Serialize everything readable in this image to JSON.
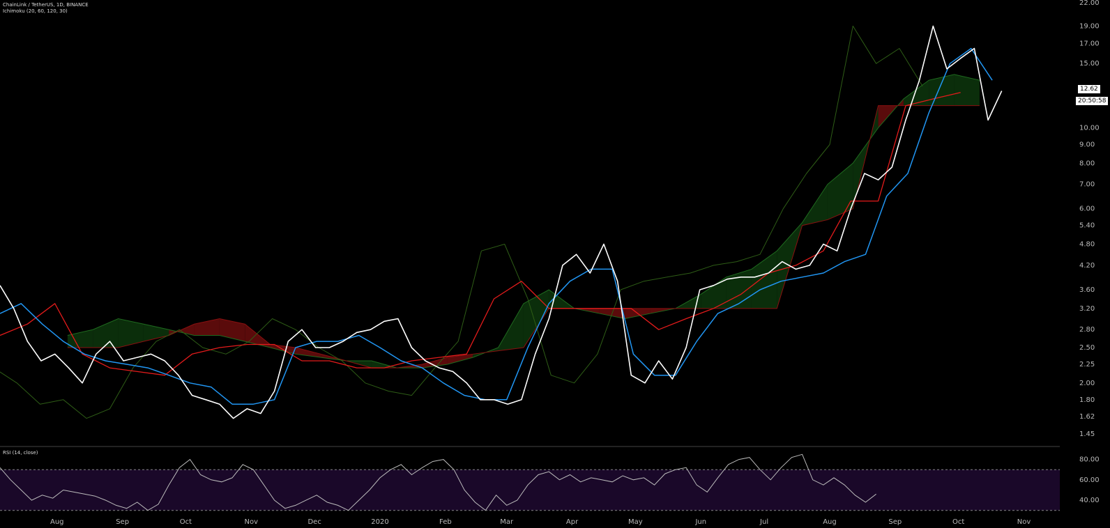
{
  "header": {
    "symbol": "ChainLink / TetherUS, 1D, BINANCE",
    "indicator": "Ichimoku (20, 60, 120, 30)",
    "rsi_label": "RSI (14, close)"
  },
  "price_tag": "12.62",
  "countdown_tag": "20:50:58",
  "colors": {
    "background": "#000000",
    "price": "#ffffff",
    "conversion": "#2196f3",
    "base": "#e31b1b",
    "lagging": "#2e5d16",
    "cloud_bull": "#0b2e0b",
    "cloud_bear": "#5a0b0b",
    "rsi_band": "#1a0829",
    "rsi_line": "#bbbbbb",
    "axis_text": "#bbbbbb"
  },
  "chart_data": [
    {
      "type": "line",
      "title": "",
      "price_scale": "log",
      "ylim": [
        1.4,
        22.0
      ],
      "y_ticks": [
        "22.00",
        "19.00",
        "17.00",
        "15.00",
        "12.62",
        "10.00",
        "9.00",
        "8.00",
        "7.00",
        "6.00",
        "5.40",
        "4.80",
        "4.20",
        "3.60",
        "3.20",
        "2.80",
        "2.50",
        "2.25",
        "2.00",
        "1.80",
        "1.62",
        "1.45"
      ],
      "x_ticks": [
        "Aug",
        "Sep",
        "Oct",
        "Nov",
        "Dec",
        "2020",
        "Feb",
        "Mar",
        "Apr",
        "May",
        "Jun",
        "Jul",
        "Aug",
        "Sep",
        "Oct",
        "Nov"
      ],
      "x_tick_index": [
        0,
        31,
        61,
        92,
        122,
        153,
        184,
        213,
        244,
        274,
        305,
        335,
        366,
        397,
        427,
        458
      ],
      "x_range_index": [
        -27,
        475
      ],
      "series": [
        {
          "key": "close",
          "x_start_index": -27,
          "values": [
            3.7,
            3.2,
            2.6,
            2.3,
            2.4,
            2.2,
            2.0,
            2.4,
            2.6,
            2.3,
            2.35,
            2.4,
            2.3,
            2.1,
            1.85,
            1.8,
            1.75,
            1.6,
            1.7,
            1.65,
            1.9,
            2.6,
            2.8,
            2.5,
            2.5,
            2.6,
            2.75,
            2.8,
            2.95,
            3.0,
            2.5,
            2.3,
            2.2,
            2.15,
            2.0,
            1.8,
            1.8,
            1.75,
            1.8,
            2.4,
            3.0,
            4.2,
            4.5,
            4.0,
            4.8,
            3.8,
            2.1,
            2.0,
            2.3,
            2.05,
            2.5,
            3.6,
            3.7,
            3.85,
            3.9,
            3.9,
            4.0,
            4.3,
            4.1,
            4.2,
            4.8,
            4.6,
            6.0,
            7.5,
            7.2,
            7.8,
            10.5,
            13.5,
            19.0,
            14.5,
            15.5,
            16.5,
            10.5,
            12.62
          ],
          "x_step": 6.5
        },
        {
          "key": "conversion",
          "x_start_index": -27,
          "values": [
            3.1,
            3.3,
            2.9,
            2.6,
            2.4,
            2.3,
            2.25,
            2.2,
            2.1,
            2.0,
            1.95,
            1.75,
            1.75,
            1.8,
            2.5,
            2.6,
            2.6,
            2.7,
            2.5,
            2.3,
            2.2,
            2.0,
            1.85,
            1.8,
            1.8,
            2.5,
            3.3,
            3.8,
            4.1,
            4.1,
            2.4,
            2.1,
            2.1,
            2.6,
            3.1,
            3.3,
            3.6,
            3.8,
            3.9,
            4.0,
            4.3,
            4.5,
            6.5,
            7.5,
            11.0,
            15.0,
            16.5,
            13.5
          ],
          "x_step": 10.0
        },
        {
          "key": "base",
          "x_start_index": -27,
          "values": [
            2.7,
            2.9,
            3.3,
            2.4,
            2.2,
            2.15,
            2.1,
            2.4,
            2.5,
            2.55,
            2.55,
            2.3,
            2.3,
            2.2,
            2.2,
            2.3,
            2.35,
            2.4,
            3.4,
            3.8,
            3.2,
            3.2,
            3.2,
            3.2,
            2.8,
            3.0,
            3.2,
            3.5,
            4.0,
            4.2,
            4.6,
            6.3,
            6.3,
            11.5,
            12.0,
            12.5
          ],
          "x_step": 13.0
        },
        {
          "key": "lagging",
          "x_start_index": -52,
          "values": [
            2.7,
            2.4,
            2.2,
            2.0,
            1.75,
            1.8,
            1.6,
            1.7,
            2.2,
            2.6,
            2.8,
            2.5,
            2.4,
            2.6,
            3.0,
            2.8,
            2.5,
            2.3,
            2.0,
            1.9,
            1.85,
            2.2,
            2.6,
            4.6,
            4.8,
            3.4,
            2.1,
            2.0,
            2.4,
            3.6,
            3.8,
            3.9,
            4.0,
            4.2,
            4.3,
            4.5,
            6.0,
            7.5,
            9.0,
            19.0,
            15.0,
            16.5,
            13.0
          ],
          "x_step": 11.0
        }
      ],
      "cloud": {
        "x_start_index": 5,
        "x_step": 12.0,
        "span_a": [
          2.7,
          2.8,
          3.0,
          2.9,
          2.8,
          2.7,
          2.7,
          2.6,
          2.5,
          2.4,
          2.35,
          2.3,
          2.3,
          2.2,
          2.2,
          2.25,
          2.35,
          2.5,
          3.3,
          3.6,
          3.2,
          3.1,
          3.0,
          3.1,
          3.2,
          3.5,
          3.9,
          4.1,
          4.6,
          5.5,
          7.0,
          8.0,
          10.0,
          12.0,
          13.5,
          14.0,
          13.5
        ],
        "span_b": [
          2.5,
          2.5,
          2.5,
          2.6,
          2.7,
          2.9,
          3.0,
          2.9,
          2.55,
          2.5,
          2.4,
          2.3,
          2.2,
          2.2,
          2.25,
          2.35,
          2.4,
          2.45,
          2.5,
          3.2,
          3.2,
          3.2,
          3.2,
          3.2,
          3.2,
          3.2,
          3.2,
          3.2,
          3.2,
          5.4,
          5.6,
          6.0,
          11.5,
          11.5,
          11.5,
          11.5,
          11.5
        ]
      }
    },
    {
      "type": "line",
      "title": "",
      "ylim": [
        25,
        90
      ],
      "y_ticks": [
        "80.00",
        "60.00",
        "40.00"
      ],
      "band": [
        30,
        70
      ],
      "series": [
        {
          "key": "rsi",
          "x_start_index": -27,
          "x_step": 5.0,
          "values": [
            72,
            60,
            50,
            40,
            45,
            42,
            50,
            48,
            46,
            44,
            40,
            35,
            32,
            38,
            30,
            36,
            55,
            72,
            80,
            65,
            60,
            58,
            62,
            75,
            70,
            55,
            40,
            32,
            35,
            40,
            45,
            38,
            35,
            30,
            40,
            50,
            62,
            70,
            75,
            65,
            72,
            78,
            80,
            70,
            50,
            38,
            30,
            45,
            35,
            40,
            55,
            65,
            68,
            60,
            65,
            58,
            62,
            60,
            58,
            64,
            60,
            62,
            55,
            66,
            70,
            72,
            55,
            48,
            62,
            75,
            80,
            82,
            70,
            60,
            72,
            82,
            85,
            60,
            55,
            62,
            55,
            45,
            38,
            46
          ]
        }
      ]
    }
  ]
}
